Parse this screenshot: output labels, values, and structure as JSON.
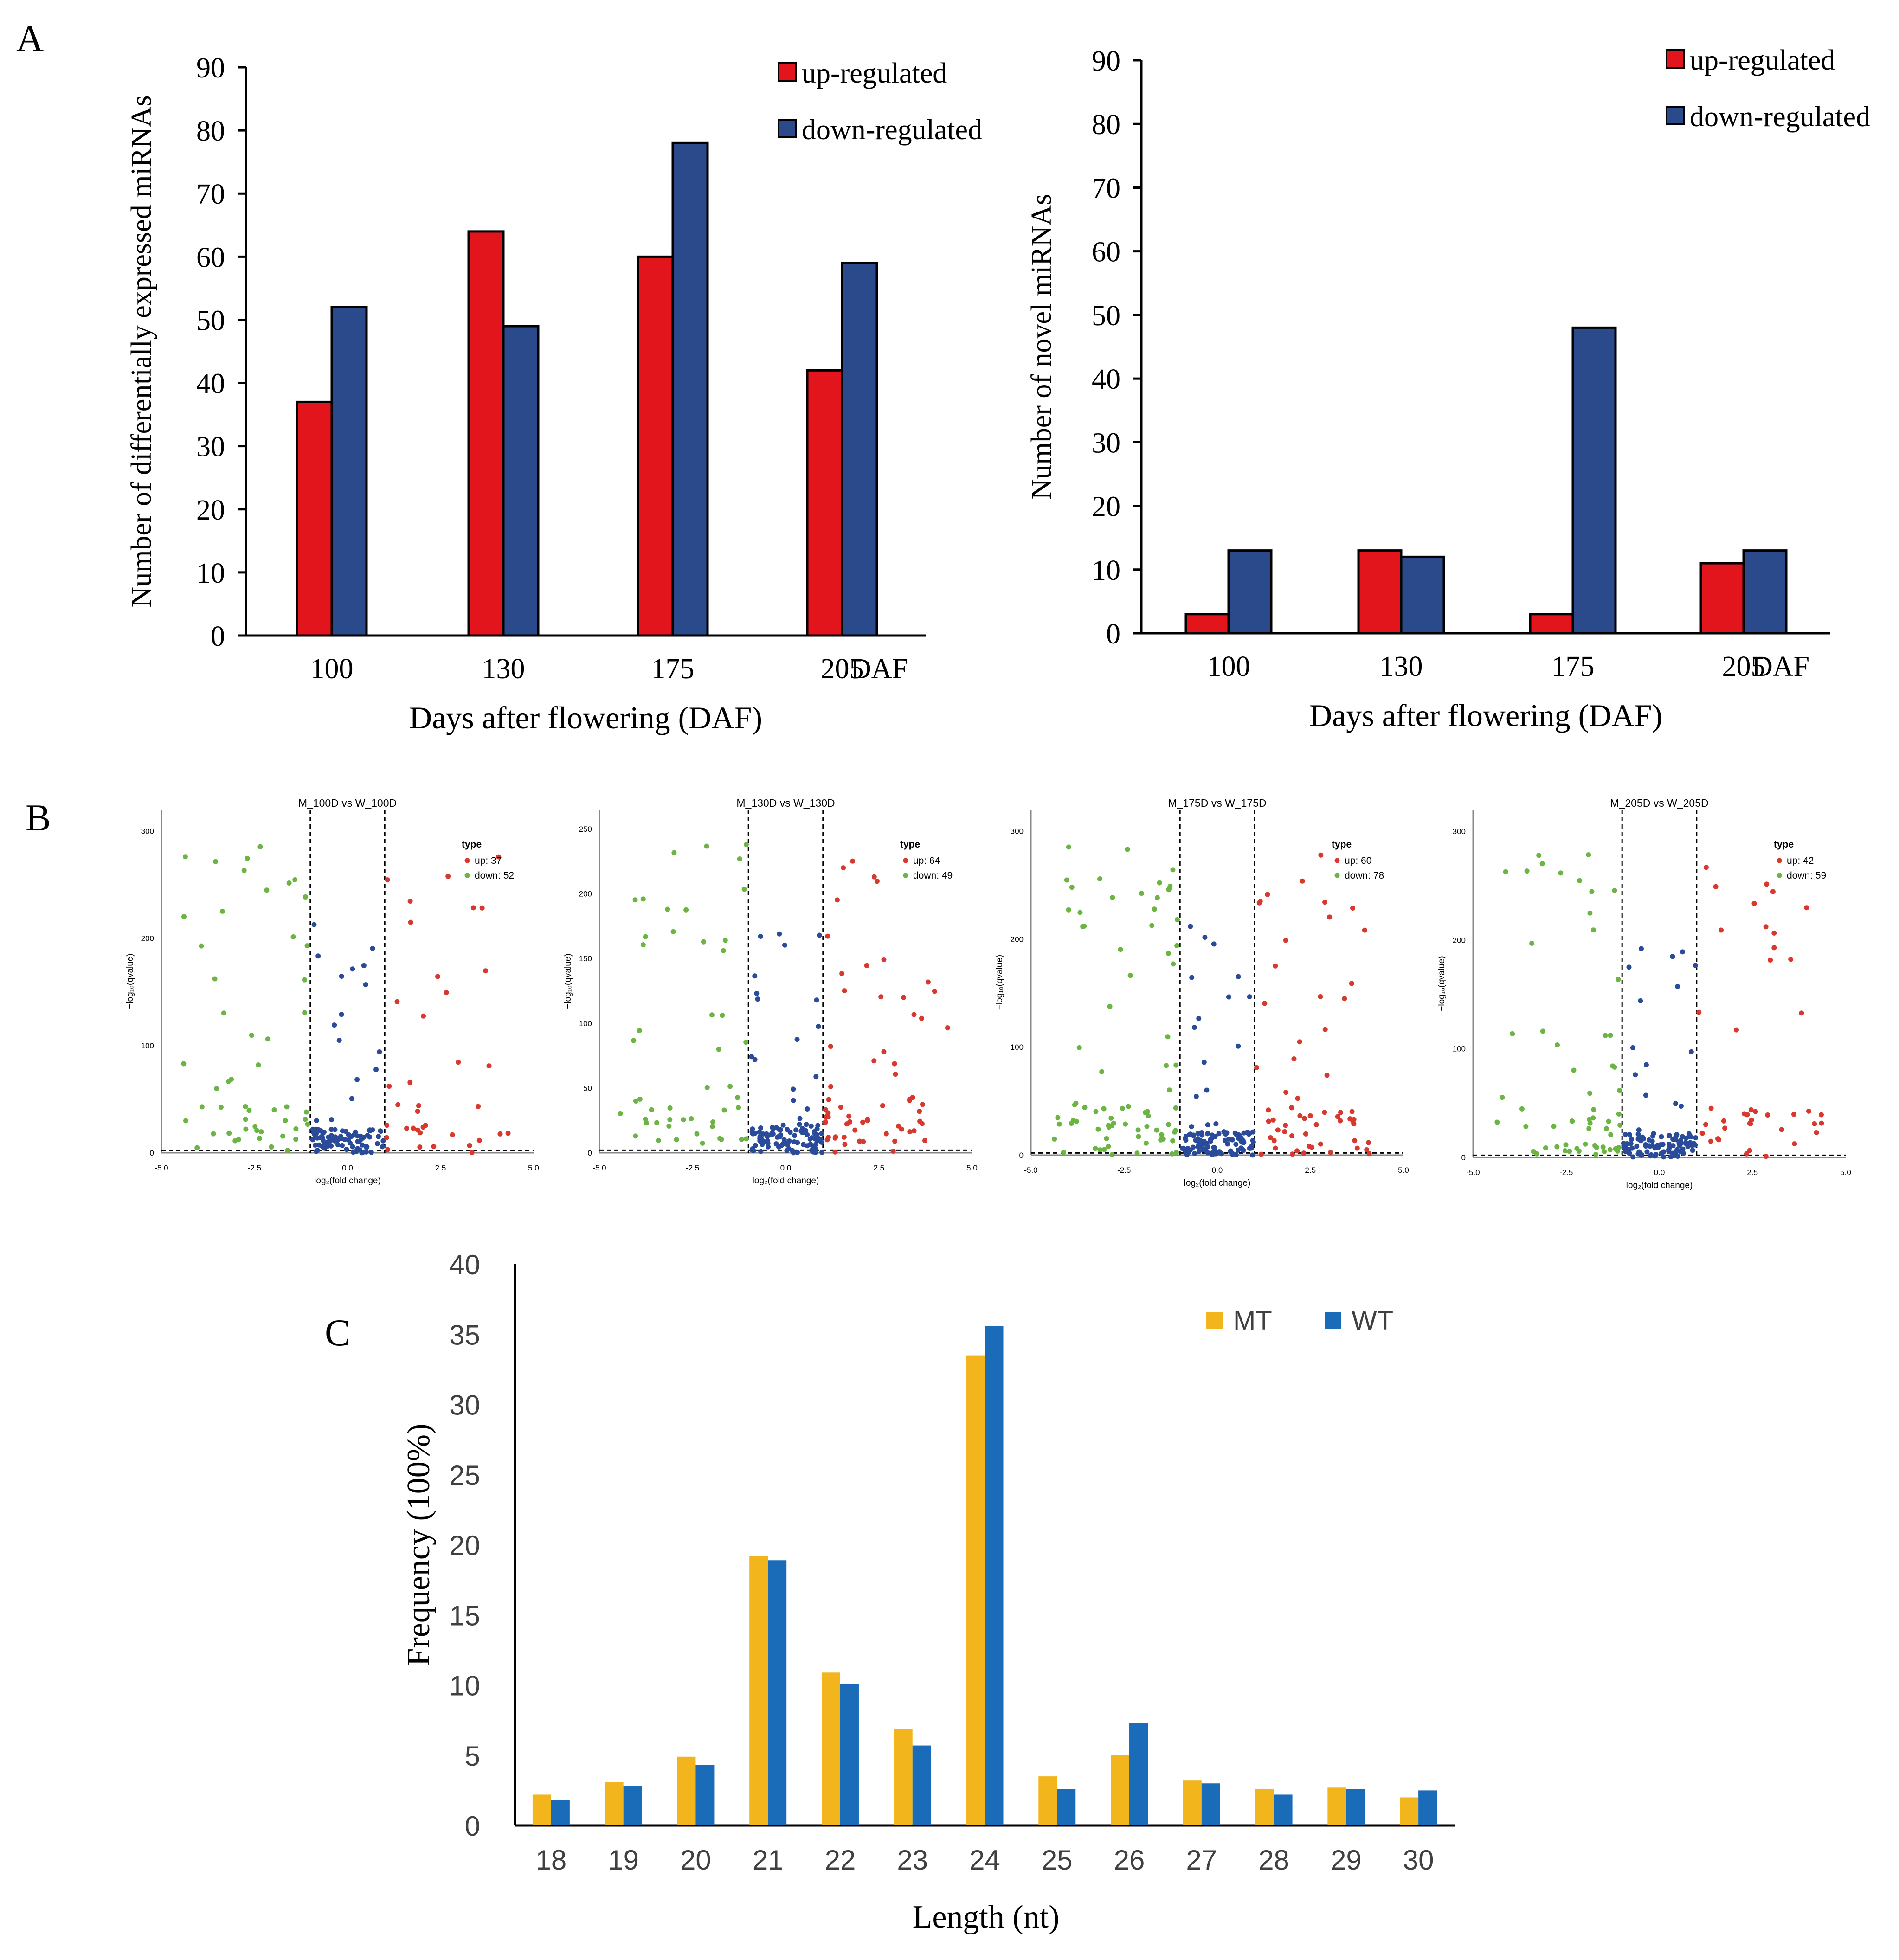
{
  "panel_labels": {
    "a": "A",
    "b": "B",
    "c": "C"
  },
  "colors": {
    "up": "#e3151c",
    "down": "#2a4a8b",
    "axis": "#000000",
    "volcano_up": "#d8382e",
    "volcano_down": "#6cb443",
    "volcano_ns": "#2a4a9a",
    "mt": "#f2b51b",
    "wt": "#1a6bb8"
  },
  "chart_data": [
    {
      "id": "A1",
      "type": "bar",
      "categories": [
        "100",
        "130",
        "175",
        "205"
      ],
      "extra_tick_label": "DAF",
      "series": [
        {
          "name": "up-regulated",
          "values": [
            37,
            64,
            60,
            42
          ]
        },
        {
          "name": "down-regulated",
          "values": [
            52,
            49,
            78,
            59
          ]
        }
      ],
      "xlabel": "Days after flowering (DAF)",
      "ylabel": "Number of differentially expressed miRNAs",
      "ylim": [
        0,
        90
      ],
      "yticks": [
        "0",
        "10",
        "20",
        "30",
        "40",
        "50",
        "60",
        "70",
        "80",
        "90"
      ],
      "legend": "top-right"
    },
    {
      "id": "A2",
      "type": "bar",
      "categories": [
        "100",
        "130",
        "175",
        "205"
      ],
      "extra_tick_label": "DAF",
      "series": [
        {
          "name": "up-regulated",
          "values": [
            3,
            13,
            3,
            11
          ]
        },
        {
          "name": "down-regulated",
          "values": [
            13,
            12,
            48,
            13
          ]
        }
      ],
      "xlabel": "Days after flowering (DAF)",
      "ylabel": "Number of novel miRNAs",
      "ylim": [
        0,
        90
      ],
      "yticks": [
        "0",
        "10",
        "20",
        "30",
        "40",
        "50",
        "60",
        "70",
        "80",
        "90"
      ],
      "legend": "top-right"
    },
    {
      "id": "B1",
      "type": "scatter",
      "title": "M_100D  vs  W_100D",
      "xlabel": "log₂(fold change)",
      "ylabel": "−log₁₀(qvalue)",
      "xlim": [
        -5.0,
        5.0
      ],
      "ylim": [
        0,
        320
      ],
      "xticks": [
        "-5.0",
        "-2.5",
        "0.0",
        "2.5",
        "5.0"
      ],
      "yticks": [
        "0",
        "100",
        "200",
        "300"
      ],
      "legend_title": "type",
      "legend_up": "up: 37",
      "legend_down": "down: 52",
      "up_count": 37,
      "down_count": 52,
      "threshold_x": 1,
      "threshold_y": 2
    },
    {
      "id": "B2",
      "type": "scatter",
      "title": "M_130D  vs  W_130D",
      "xlabel": "log₂(fold change)",
      "ylabel": "−log₁₀(qvalue)",
      "xlim": [
        -5.0,
        5.0
      ],
      "ylim": [
        0,
        265
      ],
      "xticks": [
        "-5.0",
        "-2.5",
        "0.0",
        "2.5",
        "5.0"
      ],
      "yticks": [
        "0",
        "50",
        "100",
        "150",
        "200",
        "250"
      ],
      "legend_title": "type",
      "legend_up": "up: 64",
      "legend_down": "down: 49",
      "up_count": 64,
      "down_count": 49,
      "threshold_x": 1,
      "threshold_y": 2
    },
    {
      "id": "B3",
      "type": "scatter",
      "title": "M_175D  vs  W_175D",
      "xlabel": "log₂(fold change)",
      "ylabel": "−log₁₀(qvalue)",
      "xlim": [
        -5.0,
        5.0
      ],
      "ylim": [
        0,
        320
      ],
      "xticks": [
        "-5.0",
        "-2.5",
        "0.0",
        "2.5",
        "5.0"
      ],
      "yticks": [
        "0",
        "100",
        "200",
        "300"
      ],
      "legend_title": "type",
      "legend_up": "up: 60",
      "legend_down": "down: 78",
      "up_count": 60,
      "down_count": 78,
      "threshold_x": 1,
      "threshold_y": 2
    },
    {
      "id": "B4",
      "type": "scatter",
      "title": "M_205D  vs  W_205D",
      "xlabel": "log₂(fold change)",
      "ylabel": "−log₁₀(qvalue)",
      "xlim": [
        -5.0,
        5.0
      ],
      "ylim": [
        0,
        320
      ],
      "xticks": [
        "-5.0",
        "-2.5",
        "0.0",
        "2.5",
        "5.0"
      ],
      "yticks": [
        "0",
        "100",
        "200",
        "300"
      ],
      "legend_title": "type",
      "legend_up": "up: 42",
      "legend_down": "down: 59",
      "up_count": 42,
      "down_count": 59,
      "threshold_x": 1,
      "threshold_y": 2
    },
    {
      "id": "C",
      "type": "bar",
      "categories": [
        "18",
        "19",
        "20",
        "21",
        "22",
        "23",
        "24",
        "25",
        "26",
        "27",
        "28",
        "29",
        "30"
      ],
      "series": [
        {
          "name": "MT",
          "values": [
            2.2,
            3.1,
            4.9,
            19.2,
            10.9,
            6.9,
            33.5,
            3.5,
            5.0,
            3.2,
            2.6,
            2.7,
            2.0
          ]
        },
        {
          "name": "WT",
          "values": [
            1.8,
            2.8,
            4.3,
            18.9,
            10.1,
            5.7,
            35.6,
            2.6,
            7.3,
            3.0,
            2.2,
            2.6,
            2.5
          ]
        }
      ],
      "xlabel": "Length (nt)",
      "ylabel": "Frequency (100%)",
      "ylim": [
        0,
        40
      ],
      "yticks": [
        "0",
        "5",
        "10",
        "15",
        "20",
        "25",
        "30",
        "35",
        "40"
      ],
      "legend": "top-right"
    }
  ]
}
